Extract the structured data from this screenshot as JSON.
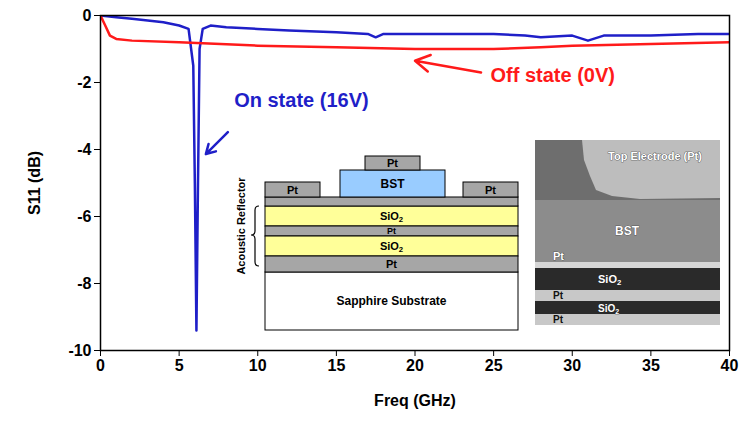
{
  "chart_data": {
    "type": "line",
    "x_label": "Freq (GHz)",
    "y_label": "S11 (dB)",
    "xlim": [
      0,
      40
    ],
    "xticks": [
      0,
      5,
      10,
      15,
      20,
      25,
      30,
      35,
      40
    ],
    "ylim": [
      -10,
      0
    ],
    "yticks": [
      0,
      -2,
      -4,
      -6,
      -8,
      -10
    ],
    "grid": false,
    "series": [
      {
        "name": "On state (16V)",
        "color": "#1f1fc8",
        "x": [
          0,
          1,
          2,
          3,
          4,
          5,
          5.6,
          5.9,
          6.0,
          6.1,
          6.2,
          6.3,
          6.5,
          7,
          8,
          10,
          12,
          15,
          17,
          17.5,
          18,
          20,
          22,
          25,
          27,
          28,
          30,
          31,
          32,
          35,
          38,
          40
        ],
        "values": [
          0,
          -0.05,
          -0.1,
          -0.15,
          -0.2,
          -0.3,
          -0.4,
          -1.5,
          -5,
          -9.4,
          -5,
          -1,
          -0.4,
          -0.3,
          -0.35,
          -0.4,
          -0.45,
          -0.5,
          -0.55,
          -0.65,
          -0.55,
          -0.55,
          -0.55,
          -0.55,
          -0.6,
          -0.65,
          -0.6,
          -0.75,
          -0.6,
          -0.6,
          -0.55,
          -0.55
        ]
      },
      {
        "name": "Off state (0V)",
        "color": "#ff1a1a",
        "x": [
          0,
          0.3,
          0.6,
          1,
          2,
          5,
          10,
          15,
          20,
          25,
          28,
          30,
          35,
          40
        ],
        "values": [
          0,
          -0.3,
          -0.6,
          -0.7,
          -0.75,
          -0.8,
          -0.9,
          -0.95,
          -1.0,
          -1.0,
          -0.95,
          -0.9,
          -0.85,
          -0.8
        ]
      }
    ],
    "inset_diagram": {
      "side_label": "Acoustic Reflector",
      "substrate": "Sapphire Substrate",
      "top_electrode": "Pt",
      "film": "BST",
      "pads": [
        "Pt",
        "Pt"
      ],
      "reflector_layers": [
        "SiO2",
        "Pt",
        "SiO2",
        "Pt"
      ]
    },
    "inset_image": {
      "top_electrode": "Top Electrode (Pt)",
      "layers": [
        "BST",
        "Pt",
        "SiO2",
        "Pt",
        "SiO2",
        "Pt"
      ]
    }
  }
}
